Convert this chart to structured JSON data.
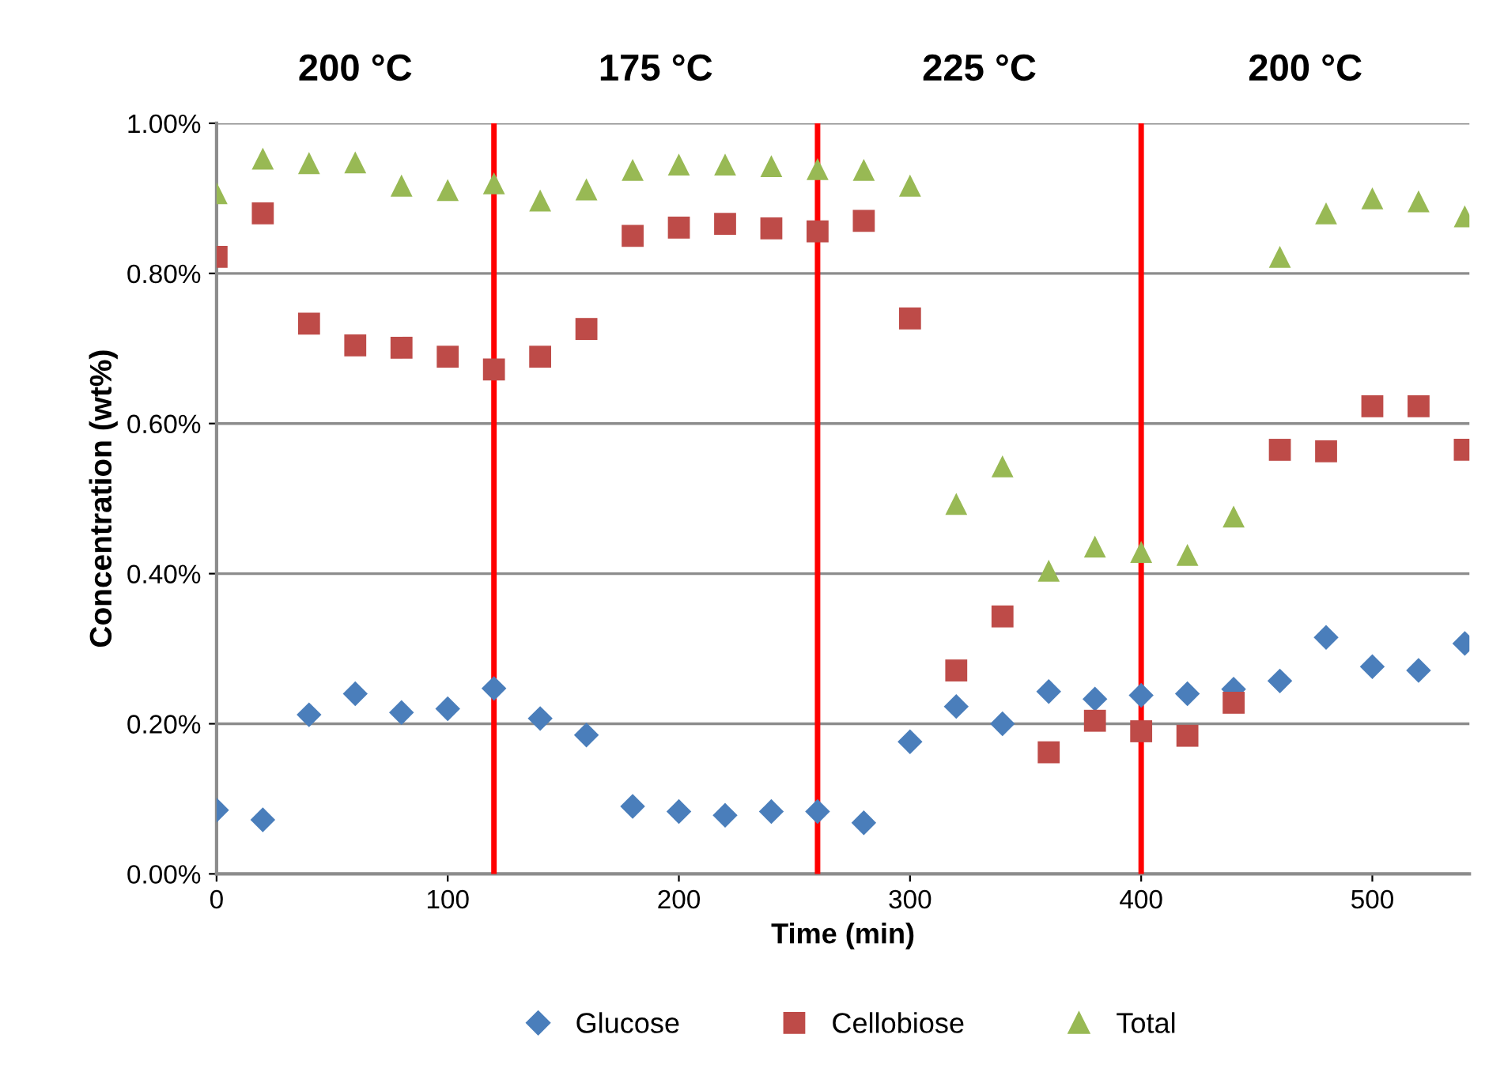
{
  "chart_data": {
    "type": "scatter",
    "xlabel": "Time (min)",
    "ylabel": "Concentration (wt%)",
    "x": [
      0,
      20,
      40,
      60,
      80,
      100,
      120,
      140,
      160,
      180,
      200,
      220,
      240,
      260,
      280,
      300,
      320,
      340,
      360,
      380,
      400,
      420,
      440,
      460,
      480,
      500,
      520,
      540
    ],
    "series": [
      {
        "name": "Glucose",
        "color": "#4a7ebb",
        "marker": "diamond",
        "values": [
          0.085,
          0.072,
          0.212,
          0.24,
          0.215,
          0.22,
          0.247,
          0.207,
          0.185,
          0.09,
          0.083,
          0.078,
          0.083,
          0.083,
          0.068,
          0.176,
          0.223,
          0.2,
          0.243,
          0.233,
          0.238,
          0.24,
          0.246,
          0.257,
          0.315,
          0.276,
          0.271,
          0.307
        ]
      },
      {
        "name": "Cellobiose",
        "color": "#be4b48",
        "marker": "square",
        "values": [
          0.822,
          0.88,
          0.733,
          0.704,
          0.701,
          0.689,
          0.672,
          0.689,
          0.726,
          0.85,
          0.861,
          0.866,
          0.86,
          0.856,
          0.87,
          0.74,
          0.271,
          0.343,
          0.162,
          0.204,
          0.19,
          0.184,
          0.228,
          0.565,
          0.563,
          0.623,
          0.623,
          0.565
        ]
      },
      {
        "name": "Total",
        "color": "#98b954",
        "marker": "triangle",
        "values": [
          0.907,
          0.953,
          0.947,
          0.948,
          0.917,
          0.911,
          0.92,
          0.897,
          0.912,
          0.938,
          0.945,
          0.945,
          0.943,
          0.939,
          0.938,
          0.917,
          0.493,
          0.543,
          0.404,
          0.436,
          0.429,
          0.425,
          0.476,
          0.822,
          0.88,
          0.9,
          0.896,
          0.876
        ]
      }
    ],
    "xlim": [
      0,
      542
    ],
    "xticks": [
      0,
      100,
      200,
      300,
      400,
      500
    ],
    "ylim": [
      0,
      1
    ],
    "yticks": [
      {
        "value": 0,
        "label": "0.00%"
      },
      {
        "value": 0.2,
        "label": "0.20%"
      },
      {
        "value": 0.4,
        "label": "0.40%"
      },
      {
        "value": 0.6,
        "label": "0.60%"
      },
      {
        "value": 0.8,
        "label": "0.80%"
      },
      {
        "value": 1,
        "label": "1.00%"
      }
    ],
    "ref_lines": [
      {
        "axis": "x",
        "value": 120,
        "color": "#ff0000"
      },
      {
        "axis": "x",
        "value": 260,
        "color": "#ff0000"
      },
      {
        "axis": "x",
        "value": 400,
        "color": "#ff0000"
      }
    ],
    "annotations": [
      "200 °C",
      "175 °C",
      "225 °C",
      "200 °C"
    ],
    "grid": "y",
    "legend": "bottom"
  }
}
